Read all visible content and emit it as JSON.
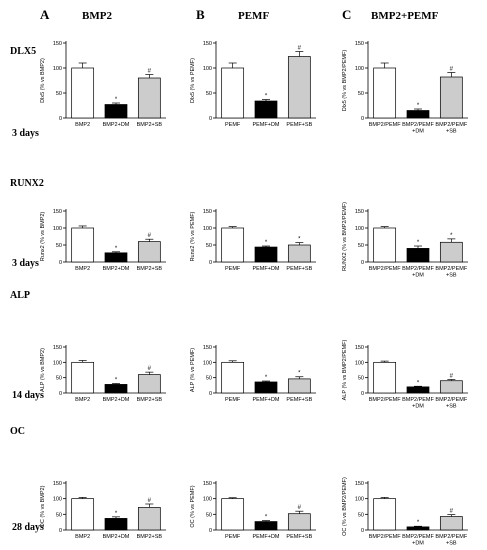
{
  "columns": [
    {
      "letter": "A",
      "title": "BMP2"
    },
    {
      "letter": "B",
      "title": "PEMF"
    },
    {
      "letter": "C",
      "title": "BMP2+PEMF"
    }
  ],
  "rows": [
    {
      "marker": "DLX5",
      "days": "3 days"
    },
    {
      "marker": "RUNX2",
      "days": "3 days"
    },
    {
      "marker": "ALP",
      "days": "14 days"
    },
    {
      "marker": "OC",
      "days": "28 days"
    }
  ],
  "chart_data": [
    {
      "type": "bar",
      "row": 0,
      "col": 0,
      "ylabel": "Dlx5 (% vs BMP2)",
      "ylim": [
        0,
        150
      ],
      "yticks": [
        0,
        50,
        100,
        150
      ],
      "categories": [
        "BMP2",
        "BMP2+DM",
        "BMP2+SB"
      ],
      "values": [
        100,
        27,
        80
      ],
      "errors": [
        10,
        3,
        7
      ],
      "marks": [
        "",
        "*",
        "#"
      ],
      "colors": [
        "#ffffff",
        "#000000",
        "#cccccc"
      ]
    },
    {
      "type": "bar",
      "row": 0,
      "col": 1,
      "ylabel": "Dlx5 (% vs PEMF)",
      "ylim": [
        0,
        150
      ],
      "yticks": [
        0,
        50,
        100,
        150
      ],
      "categories": [
        "PEMF",
        "PEMF+DM",
        "PEMF+SB"
      ],
      "values": [
        100,
        34,
        123
      ],
      "errors": [
        10,
        3,
        10
      ],
      "marks": [
        "",
        "*",
        "#"
      ],
      "colors": [
        "#ffffff",
        "#000000",
        "#cccccc"
      ]
    },
    {
      "type": "bar",
      "row": 0,
      "col": 2,
      "ylabel": "Dlx5 (% vs BMP2/PEMF)",
      "ylim": [
        0,
        150
      ],
      "yticks": [
        0,
        50,
        100,
        150
      ],
      "categories": [
        "BMP2/PEMF",
        "BMP2/PEMF\n+DM",
        "BMP2/PEMF\n+SB"
      ],
      "values": [
        100,
        15,
        82
      ],
      "errors": [
        10,
        3,
        9
      ],
      "marks": [
        "",
        "*",
        "#"
      ],
      "colors": [
        "#ffffff",
        "#000000",
        "#cccccc"
      ]
    },
    {
      "type": "bar",
      "row": 1,
      "col": 0,
      "ylabel": "Runx2 (% vs BMP2)",
      "ylim": [
        0,
        150
      ],
      "yticks": [
        0,
        50,
        100,
        150
      ],
      "categories": [
        "BMP2",
        "BMP2+DM",
        "BMP2+SB"
      ],
      "values": [
        100,
        27,
        60
      ],
      "errors": [
        6,
        3,
        7
      ],
      "marks": [
        "",
        "*",
        "#"
      ],
      "colors": [
        "#ffffff",
        "#000000",
        "#cccccc"
      ]
    },
    {
      "type": "bar",
      "row": 1,
      "col": 1,
      "ylabel": "Runx2 (% vs PEMF)",
      "ylim": [
        0,
        150
      ],
      "yticks": [
        0,
        50,
        100,
        150
      ],
      "categories": [
        "PEMF",
        "PEMF+DM",
        "PEMF+SB"
      ],
      "values": [
        100,
        44,
        50
      ],
      "errors": [
        4,
        3,
        7
      ],
      "marks": [
        "",
        "*",
        "*"
      ],
      "colors": [
        "#ffffff",
        "#000000",
        "#cccccc"
      ]
    },
    {
      "type": "bar",
      "row": 1,
      "col": 2,
      "ylabel": "RUNX2 (% vs BMP2/PEMF)",
      "ylim": [
        0,
        150
      ],
      "yticks": [
        0,
        50,
        100,
        150
      ],
      "categories": [
        "BMP2/PEMF",
        "BMP2/PEMF\n+DM",
        "BMP2/PEMF\n+SB"
      ],
      "values": [
        100,
        40,
        58
      ],
      "errors": [
        4,
        7,
        10
      ],
      "marks": [
        "",
        "*",
        "*"
      ],
      "colors": [
        "#ffffff",
        "#000000",
        "#cccccc"
      ]
    },
    {
      "type": "bar",
      "row": 2,
      "col": 0,
      "ylabel": "ALP (% vs BMP2)",
      "ylim": [
        0,
        150
      ],
      "yticks": [
        0,
        50,
        100,
        150
      ],
      "categories": [
        "BMP2",
        "BMP2+DM",
        "BMP2+SB"
      ],
      "values": [
        100,
        28,
        60
      ],
      "errors": [
        6,
        3,
        8
      ],
      "marks": [
        "",
        "*",
        "#"
      ],
      "colors": [
        "#ffffff",
        "#000000",
        "#cccccc"
      ]
    },
    {
      "type": "bar",
      "row": 2,
      "col": 1,
      "ylabel": "ALP (% vs PEMF)",
      "ylim": [
        0,
        150
      ],
      "yticks": [
        0,
        50,
        100,
        150
      ],
      "categories": [
        "PEMF",
        "PEMF+DM",
        "PEMF+SB"
      ],
      "values": [
        100,
        36,
        46
      ],
      "errors": [
        5,
        3,
        7
      ],
      "marks": [
        "",
        "*",
        "*"
      ],
      "colors": [
        "#ffffff",
        "#000000",
        "#cccccc"
      ]
    },
    {
      "type": "bar",
      "row": 2,
      "col": 2,
      "ylabel": "ALP (% vs BMP2/PEMF)",
      "ylim": [
        0,
        150
      ],
      "yticks": [
        0,
        50,
        100,
        150
      ],
      "categories": [
        "BMP2/PEMF",
        "BMP2/PEMF\n+DM",
        "BMP2/PEMF\n+SB"
      ],
      "values": [
        100,
        20,
        40
      ],
      "errors": [
        4,
        2,
        4
      ],
      "marks": [
        "",
        "*",
        "#"
      ],
      "colors": [
        "#ffffff",
        "#000000",
        "#cccccc"
      ]
    },
    {
      "type": "bar",
      "row": 3,
      "col": 0,
      "ylabel": "OC (% vs BMP2)",
      "ylim": [
        0,
        150
      ],
      "yticks": [
        0,
        50,
        100,
        150
      ],
      "categories": [
        "BMP2",
        "BMP2+DM",
        "BMP2+SB"
      ],
      "values": [
        100,
        37,
        72
      ],
      "errors": [
        4,
        5,
        11
      ],
      "marks": [
        "",
        "*",
        "#"
      ],
      "colors": [
        "#ffffff",
        "#000000",
        "#cccccc"
      ]
    },
    {
      "type": "bar",
      "row": 3,
      "col": 1,
      "ylabel": "OC (% vs PEMF)",
      "ylim": [
        0,
        150
      ],
      "yticks": [
        0,
        50,
        100,
        150
      ],
      "categories": [
        "PEMF",
        "PEMF+DM",
        "PEMF+SB"
      ],
      "values": [
        100,
        27,
        52
      ],
      "errors": [
        3,
        3,
        8
      ],
      "marks": [
        "",
        "*",
        "#"
      ],
      "colors": [
        "#ffffff",
        "#000000",
        "#cccccc"
      ]
    },
    {
      "type": "bar",
      "row": 3,
      "col": 2,
      "ylabel": "OC (% vs BMP2/PEMF)",
      "ylim": [
        0,
        150
      ],
      "yticks": [
        0,
        50,
        100,
        150
      ],
      "categories": [
        "BMP2/PEMF",
        "BMP2/PEMF\n+DM",
        "BMP2/PEMF\n+SB"
      ],
      "values": [
        100,
        10,
        43
      ],
      "errors": [
        4,
        2,
        6
      ],
      "marks": [
        "",
        "*",
        "#"
      ],
      "colors": [
        "#ffffff",
        "#000000",
        "#cccccc"
      ]
    }
  ]
}
